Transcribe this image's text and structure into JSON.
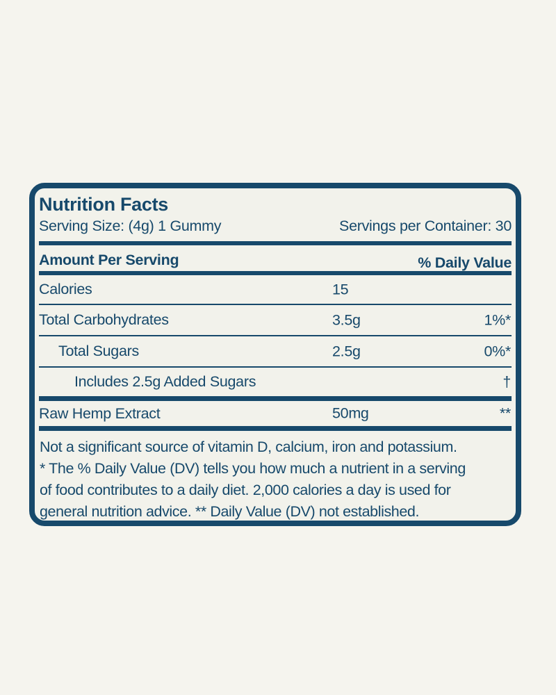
{
  "colors": {
    "navy": "#17496b",
    "page_bg": "#f5f4ee",
    "label_bg": "#f2f2eb"
  },
  "label": {
    "title": "Nutrition Facts",
    "serving_size": "Serving Size: (4g) 1 Gummy",
    "servings_per_container": "Servings per Container: 30",
    "amount_per_serving_label": "Amount Per Serving",
    "daily_value_label": "% Daily Value",
    "rows": [
      {
        "name": "Calories",
        "amount": "15",
        "dv": ""
      },
      {
        "name": "Total Carbohydrates",
        "amount": "3.5g",
        "dv": "1%*"
      },
      {
        "name": "Total Sugars",
        "amount": "2.5g",
        "dv": "0%*"
      },
      {
        "name": "Includes 2.5g Added Sugars",
        "amount": "",
        "dv": "†"
      },
      {
        "name": "Raw Hemp Extract",
        "amount": "50mg",
        "dv": "**"
      }
    ],
    "footnote_lines": [
      "Not a significant source of vitamin D, calcium, iron and potassium.",
      "* The % Daily Value (DV) tells you how much a nutrient in a serving",
      "of food contributes to a daily diet. 2,000 calories a day is used for",
      "general nutrition advice.  ** Daily Value (DV) not established."
    ]
  }
}
